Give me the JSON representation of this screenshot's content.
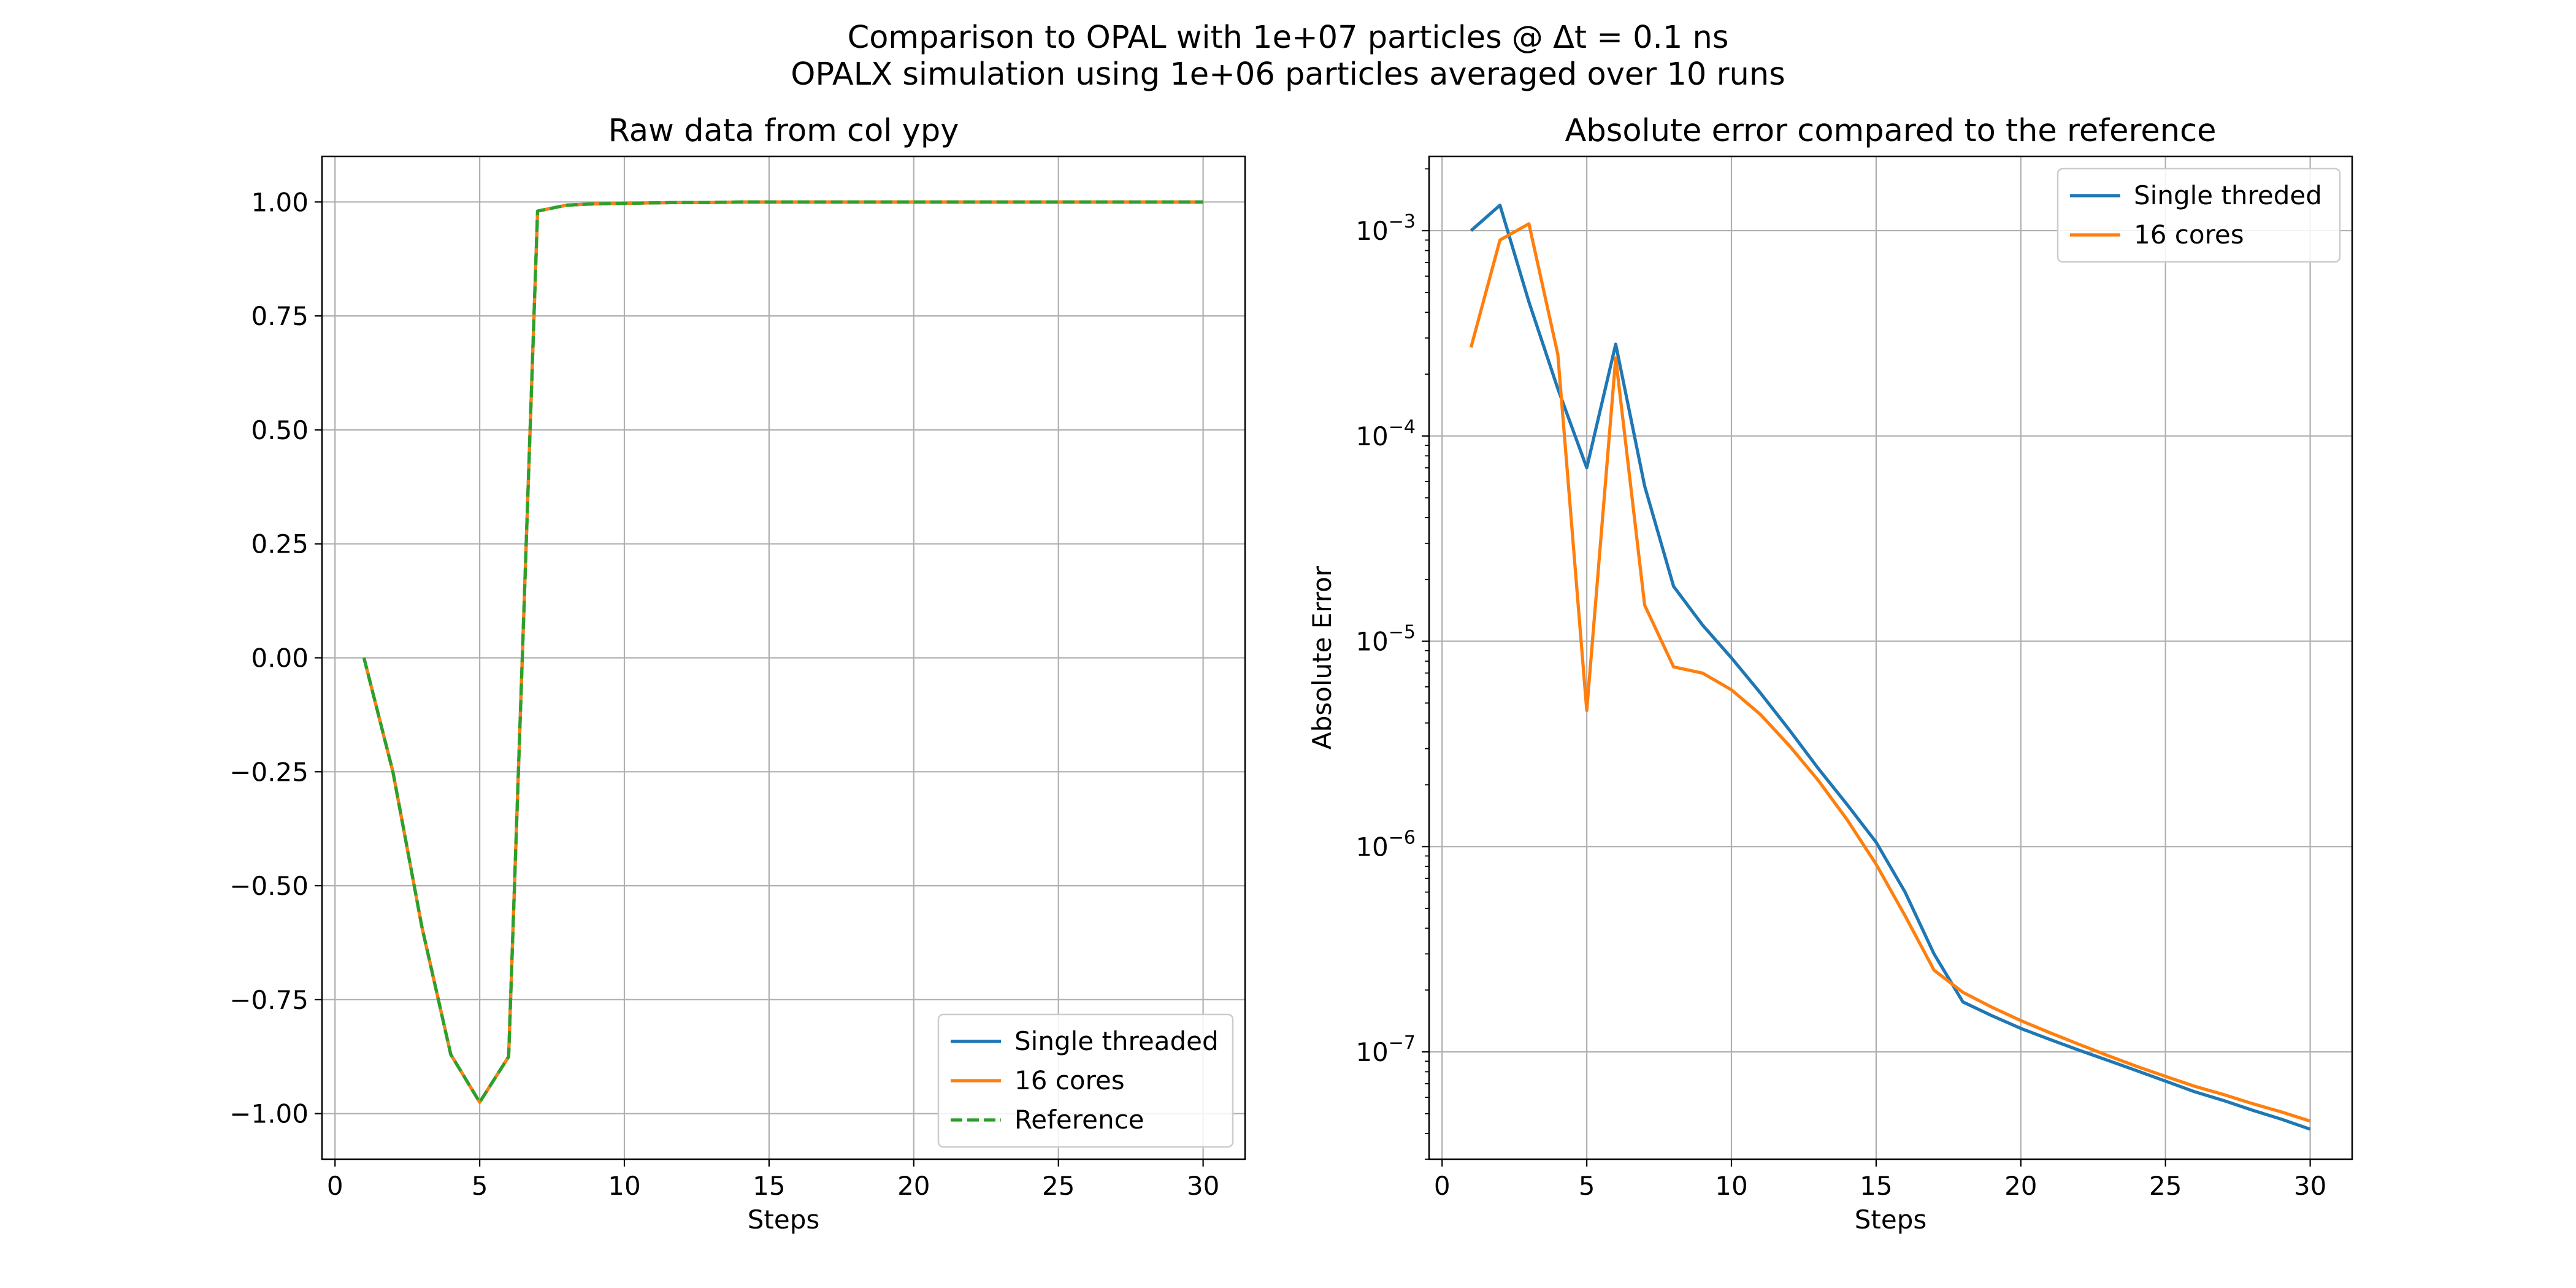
{
  "figure": {
    "suptitle_line1": "Comparison to OPAL with 1e+07 particles @ Δt = 0.1 ns",
    "suptitle_line2": "OPALX simulation using 1e+06 particles averaged over 10 runs"
  },
  "colors": {
    "single": "#1f77b4",
    "cores16": "#ff7f0e",
    "reference": "#2ca02c",
    "grid": "#b0b0b0"
  },
  "chart_data": [
    {
      "type": "line",
      "title": "Raw data from col ypy",
      "xlabel": "Steps",
      "ylabel": "",
      "xlim": [
        -0.45,
        31.45
      ],
      "ylim": [
        -1.1,
        1.1
      ],
      "xticks": [
        0,
        5,
        10,
        15,
        20,
        25,
        30
      ],
      "xtick_labels": [
        "0",
        "5",
        "10",
        "15",
        "20",
        "25",
        "30"
      ],
      "yticks": [
        1.0,
        0.75,
        0.5,
        0.25,
        0.0,
        -0.25,
        -0.5,
        -0.75,
        -1.0
      ],
      "ytick_labels": [
        "1.00",
        "0.75",
        "0.50",
        "0.25",
        "0.00",
        "−0.25",
        "−0.50",
        "−0.75",
        "−1.00"
      ],
      "grid": true,
      "legend_position": "lower-right",
      "x": [
        1,
        2,
        3,
        4,
        5,
        6,
        7,
        8,
        9,
        10,
        11,
        12,
        13,
        14,
        15,
        16,
        17,
        18,
        19,
        20,
        21,
        22,
        23,
        24,
        25,
        26,
        27,
        28,
        29,
        30
      ],
      "series": [
        {
          "name": "Single threaded",
          "style": "solid",
          "color": "#1f77b4",
          "values": [
            0.0,
            -0.25,
            -0.59,
            -0.87,
            -0.975,
            -0.875,
            0.98,
            0.993,
            0.996,
            0.997,
            0.998,
            0.999,
            0.999,
            1.0,
            1.0,
            1.0,
            1.0,
            1.0,
            1.0,
            1.0,
            1.0,
            1.0,
            1.0,
            1.0,
            1.0,
            1.0,
            1.0,
            1.0,
            1.0,
            1.0
          ]
        },
        {
          "name": "16 cores",
          "style": "solid",
          "color": "#ff7f0e",
          "values": [
            0.0,
            -0.25,
            -0.59,
            -0.87,
            -0.975,
            -0.875,
            0.98,
            0.993,
            0.996,
            0.997,
            0.998,
            0.999,
            0.999,
            1.0,
            1.0,
            1.0,
            1.0,
            1.0,
            1.0,
            1.0,
            1.0,
            1.0,
            1.0,
            1.0,
            1.0,
            1.0,
            1.0,
            1.0,
            1.0,
            1.0
          ]
        },
        {
          "name": "Reference",
          "style": "dashed",
          "color": "#2ca02c",
          "values": [
            0.0,
            -0.25,
            -0.59,
            -0.87,
            -0.975,
            -0.875,
            0.98,
            0.993,
            0.996,
            0.997,
            0.998,
            0.999,
            0.999,
            1.0,
            1.0,
            1.0,
            1.0,
            1.0,
            1.0,
            1.0,
            1.0,
            1.0,
            1.0,
            1.0,
            1.0,
            1.0,
            1.0,
            1.0,
            1.0,
            1.0
          ]
        }
      ]
    },
    {
      "type": "line",
      "title": "Absolute error compared to the reference",
      "xlabel": "Steps",
      "ylabel": "Absolute Error",
      "yscale": "log",
      "xlim": [
        -0.45,
        31.45
      ],
      "ylim": [
        3e-08,
        0.0023
      ],
      "xticks": [
        0,
        5,
        10,
        15,
        20,
        25,
        30
      ],
      "xtick_labels": [
        "0",
        "5",
        "10",
        "15",
        "20",
        "25",
        "30"
      ],
      "yticks": [
        0.001,
        0.0001,
        1e-05,
        1e-06,
        1e-07
      ],
      "ytick_labels": [
        {
          "base": "10",
          "exp": "−3"
        },
        {
          "base": "10",
          "exp": "−4"
        },
        {
          "base": "10",
          "exp": "−5"
        },
        {
          "base": "10",
          "exp": "−6"
        },
        {
          "base": "10",
          "exp": "−7"
        }
      ],
      "grid": true,
      "legend_position": "upper-right",
      "x": [
        1,
        2,
        3,
        4,
        5,
        6,
        7,
        8,
        9,
        10,
        11,
        12,
        13,
        14,
        15,
        16,
        17,
        18,
        19,
        20,
        21,
        22,
        23,
        24,
        25,
        26,
        27,
        28,
        29,
        30
      ],
      "series": [
        {
          "name": "Single threded",
          "style": "solid",
          "color": "#1f77b4",
          "values": [
            0.001,
            0.00133,
            0.00045,
            0.00017,
            7e-05,
            0.00028,
            5.7e-05,
            1.85e-05,
            1.2e-05,
            8.3e-06,
            5.6e-06,
            3.7e-06,
            2.4e-06,
            1.6e-06,
            1.05e-06,
            6e-07,
            3e-07,
            1.75e-07,
            1.5e-07,
            1.3e-07,
            1.15e-07,
            1.02e-07,
            9.1e-08,
            8.1e-08,
            7.2e-08,
            6.4e-08,
            5.8e-08,
            5.2e-08,
            4.7e-08,
            4.2e-08
          ]
        },
        {
          "name": "16 cores",
          "style": "solid",
          "color": "#ff7f0e",
          "values": [
            0.00027,
            0.0009,
            0.00108,
            0.00025,
            4.6e-06,
            0.00024,
            1.5e-05,
            7.5e-06,
            7e-06,
            5.8e-06,
            4.4e-06,
            3.1e-06,
            2.1e-06,
            1.35e-06,
            8.2e-07,
            4.6e-07,
            2.5e-07,
            1.95e-07,
            1.65e-07,
            1.42e-07,
            1.24e-07,
            1.09e-07,
            9.6e-08,
            8.5e-08,
            7.6e-08,
            6.8e-08,
            6.2e-08,
            5.6e-08,
            5.1e-08,
            4.6e-08
          ]
        }
      ]
    }
  ]
}
